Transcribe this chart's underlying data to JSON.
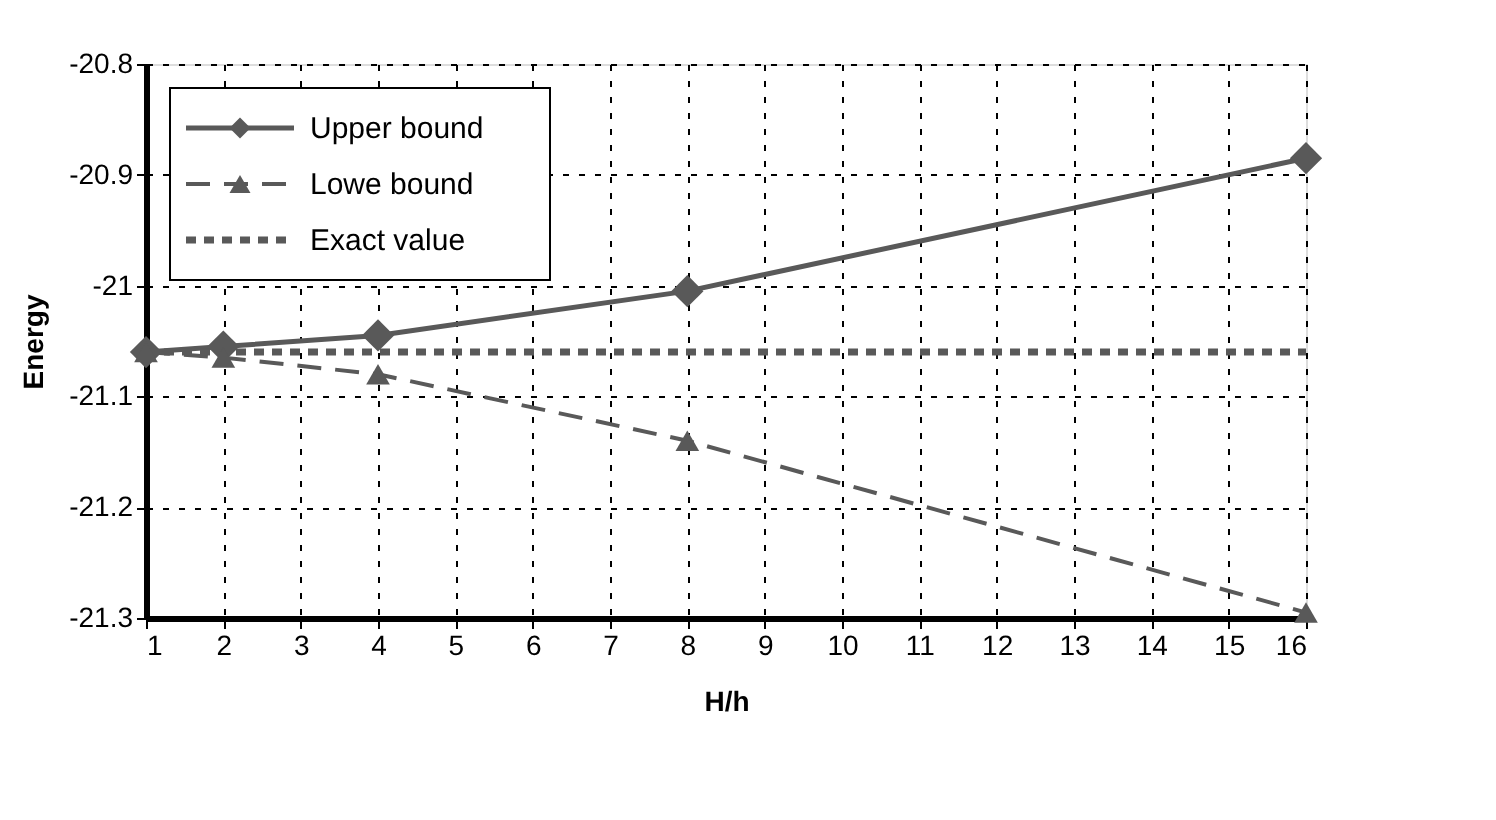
{
  "chart_data": {
    "type": "line",
    "xlabel": "H/h",
    "ylabel": "Energy",
    "xlim": [
      1,
      16
    ],
    "xticks": [
      1,
      2,
      3,
      4,
      5,
      6,
      7,
      8,
      9,
      10,
      11,
      12,
      13,
      14,
      15,
      16
    ],
    "ylim": [
      -21.3,
      -20.8
    ],
    "yticks": [
      -21.3,
      -21.2,
      -21.1,
      -21,
      -20.9,
      -20.8
    ],
    "grid": true,
    "legend": "top left",
    "series": [
      {
        "name": "Upper bound",
        "color": "#595959",
        "marker": "diamond",
        "line_style": "solid",
        "x": [
          1,
          2,
          4,
          8,
          16
        ],
        "values": [
          -21.06,
          -21.055,
          -21.045,
          -21.005,
          -20.885
        ]
      },
      {
        "name": "Lowe  bound",
        "color": "#595959",
        "marker": "triangle",
        "line_style": "dashed",
        "x": [
          1,
          2,
          4,
          8,
          16
        ],
        "values": [
          -21.06,
          -21.065,
          -21.08,
          -21.14,
          -21.295
        ]
      },
      {
        "name": "Exact value",
        "color": "#595959",
        "marker": "none",
        "line_style": "dotted",
        "x": [
          1,
          16
        ],
        "values": [
          -21.06,
          -21.06
        ]
      }
    ]
  }
}
